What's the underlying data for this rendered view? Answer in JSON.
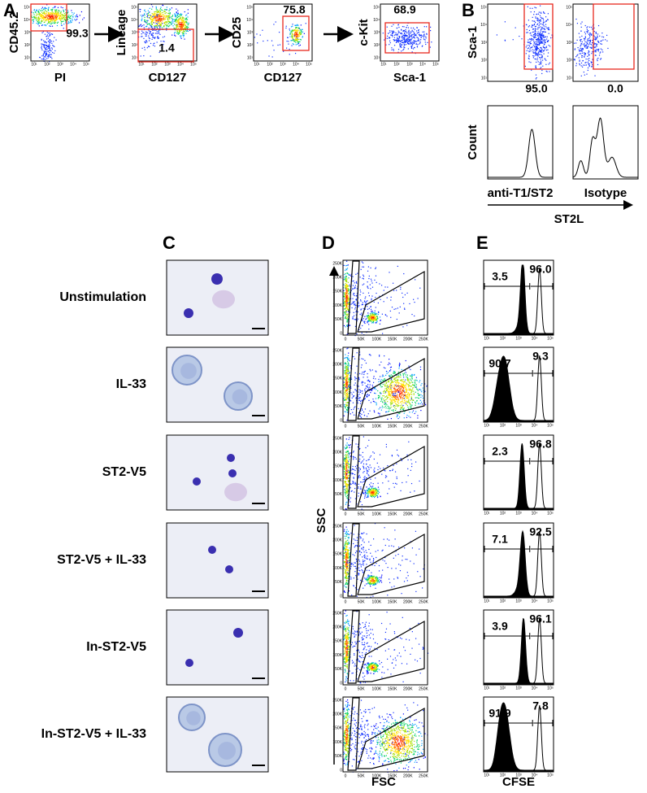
{
  "panels": {
    "A": {
      "label": "A",
      "plots": [
        {
          "y_label": "CD45.2",
          "x_label": "PI",
          "gate": "99.3"
        },
        {
          "y_label": "Lineage",
          "x_label": "CD127",
          "gate": "1.4"
        },
        {
          "y_label": "CD25",
          "x_label": "CD127",
          "gate": "75.8"
        },
        {
          "y_label": "c-Kit",
          "x_label": "Sca-1",
          "gate": "68.9"
        }
      ]
    },
    "B": {
      "label": "B",
      "y_label_top": "Sca-1",
      "gates": [
        "95.0",
        "0.0"
      ],
      "y_label_bottom": "Count",
      "hist_labels": [
        "anti-T1/ST2",
        "Isotype"
      ],
      "x_label": "ST2L"
    },
    "C": {
      "label": "C",
      "rows": [
        "Unstimulation",
        "IL-33",
        "ST2-V5",
        "ST2-V5 + IL-33",
        "In-ST2-V5",
        "In-ST2-V5 + IL-33"
      ]
    },
    "D": {
      "label": "D",
      "y_label": "SSC",
      "x_label": "FSC",
      "ticks": [
        "0",
        "50K",
        "100K",
        "150K",
        "200K",
        "250K"
      ]
    },
    "E": {
      "label": "E",
      "x_label": "CFSE",
      "rows": [
        {
          "left": "3.5",
          "right": "96.0"
        },
        {
          "left": "90.7",
          "right": "9.3"
        },
        {
          "left": "2.3",
          "right": "96.8"
        },
        {
          "left": "7.1",
          "right": "92.5"
        },
        {
          "left": "3.9",
          "right": "96.1"
        },
        {
          "left": "91.9",
          "right": "7.8"
        }
      ]
    }
  },
  "log_ticks": [
    "10¹",
    "10²",
    "10³",
    "10⁴",
    "10⁵"
  ]
}
